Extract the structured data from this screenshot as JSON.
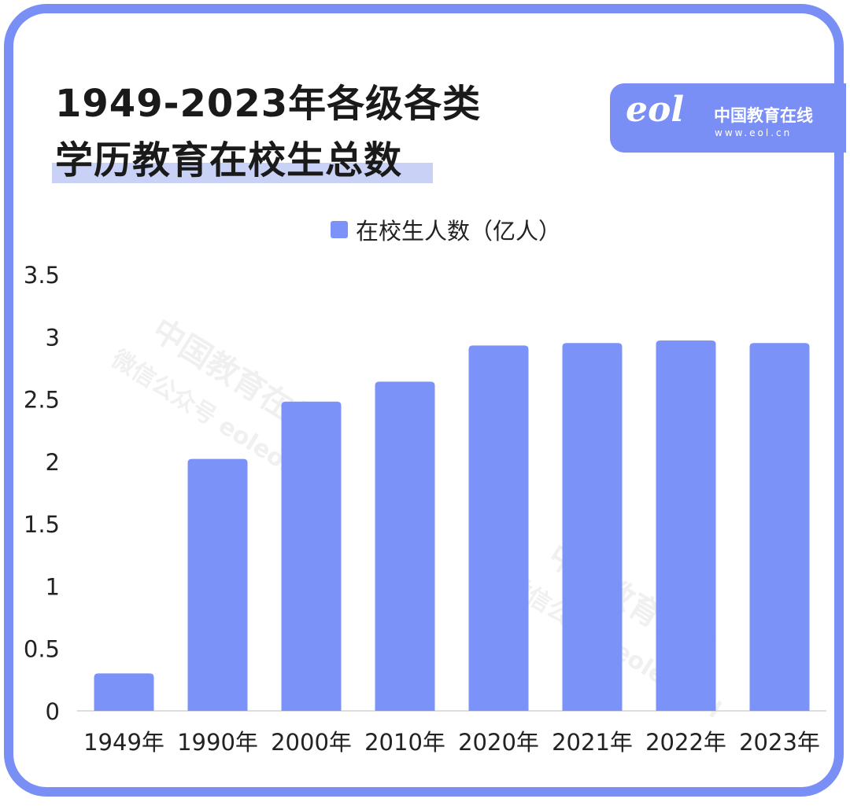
{
  "title": {
    "line1": "1949-2023年各级各类",
    "line2": "学历教育在校生总数"
  },
  "logo": {
    "mark": "eol",
    "name": "中国教育在线",
    "url": "www.eol.cn"
  },
  "watermark": {
    "title": "中国教育在线",
    "sub": "微信公众号 eoleoleol"
  },
  "colors": {
    "frame": "#7a8ff5",
    "bar": "#7b93f9",
    "highlight": "#c9d1f7"
  },
  "chart_data": {
    "type": "bar",
    "title": "1949-2023年各级各类学历教育在校生总数",
    "categories": [
      "1949年",
      "1990年",
      "2000年",
      "2010年",
      "2020年",
      "2021年",
      "2022年",
      "2023年"
    ],
    "series": [
      {
        "name": "在校生人数（亿人）",
        "values": [
          0.3,
          2.02,
          2.48,
          2.64,
          2.93,
          2.95,
          2.97,
          2.95
        ]
      }
    ],
    "yticks": [
      "0",
      "0.5",
      "1",
      "1.5",
      "2",
      "2.5",
      "3",
      "3.5"
    ],
    "ylim": [
      0,
      3.5
    ],
    "grid": false,
    "legend": "top-center"
  }
}
